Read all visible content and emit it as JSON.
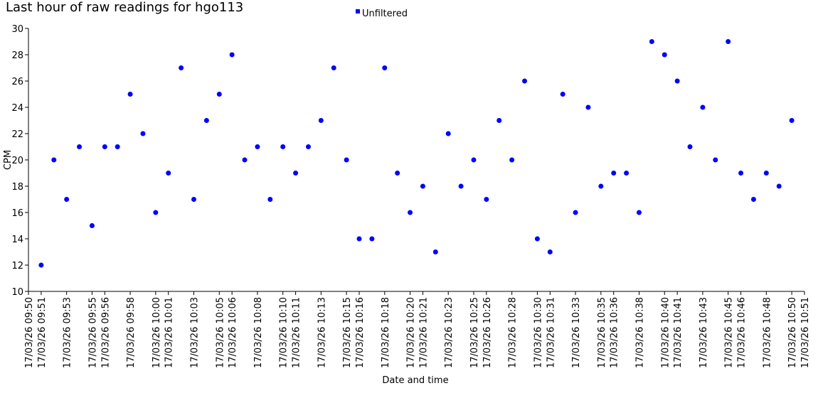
{
  "chart_data": {
    "type": "scatter",
    "title": "Last hour of raw readings for hgo113",
    "x_label": "Date and time",
    "y_label": "CPM",
    "series": [
      {
        "name": "Unfiltered",
        "color": "#0000ff",
        "x": [
          "17/03/26 09:51",
          "17/03/26 09:52",
          "17/03/26 09:53",
          "17/03/26 09:54",
          "17/03/26 09:55",
          "17/03/26 09:56",
          "17/03/26 09:57",
          "17/03/26 09:58",
          "17/03/26 09:59",
          "17/03/26 10:00",
          "17/03/26 10:01",
          "17/03/26 10:02",
          "17/03/26 10:03",
          "17/03/26 10:04",
          "17/03/26 10:05",
          "17/03/26 10:06",
          "17/03/26 10:07",
          "17/03/26 10:08",
          "17/03/26 10:09",
          "17/03/26 10:10",
          "17/03/26 10:11",
          "17/03/26 10:12",
          "17/03/26 10:13",
          "17/03/26 10:14",
          "17/03/26 10:15",
          "17/03/26 10:16",
          "17/03/26 10:17",
          "17/03/26 10:18",
          "17/03/26 10:19",
          "17/03/26 10:20",
          "17/03/26 10:21",
          "17/03/26 10:22",
          "17/03/26 10:23",
          "17/03/26 10:24",
          "17/03/26 10:25",
          "17/03/26 10:26",
          "17/03/26 10:27",
          "17/03/26 10:28",
          "17/03/26 10:29",
          "17/03/26 10:30",
          "17/03/26 10:31",
          "17/03/26 10:32",
          "17/03/26 10:33",
          "17/03/26 10:34",
          "17/03/26 10:35",
          "17/03/26 10:36",
          "17/03/26 10:37",
          "17/03/26 10:38",
          "17/03/26 10:39",
          "17/03/26 10:40",
          "17/03/26 10:41",
          "17/03/26 10:42",
          "17/03/26 10:43",
          "17/03/26 10:44",
          "17/03/26 10:45",
          "17/03/26 10:46",
          "17/03/26 10:47",
          "17/03/26 10:48",
          "17/03/26 10:49",
          "17/03/26 10:50"
        ],
        "values": [
          12,
          20,
          17,
          21,
          15,
          21,
          21,
          25,
          22,
          16,
          19,
          27,
          17,
          23,
          25,
          28,
          20,
          21,
          17,
          21,
          19,
          21,
          23,
          27,
          20,
          14,
          14,
          27,
          19,
          16,
          18,
          13,
          22,
          18,
          20,
          17,
          23,
          20,
          26,
          14,
          13,
          25,
          16,
          24,
          18,
          19,
          19,
          16,
          29,
          28,
          26,
          21,
          24,
          20,
          29,
          19,
          17,
          19,
          18,
          23
        ]
      }
    ],
    "xlim": [
      "17/03/26 09:50",
      "17/03/26 10:51"
    ],
    "xticks": [
      "17/03/26 09:50",
      "17/03/26 09:51",
      "17/03/26 09:53",
      "17/03/26 09:55",
      "17/03/26 09:56",
      "17/03/26 09:58",
      "17/03/26 10:00",
      "17/03/26 10:01",
      "17/03/26 10:03",
      "17/03/26 10:05",
      "17/03/26 10:06",
      "17/03/26 10:08",
      "17/03/26 10:10",
      "17/03/26 10:11",
      "17/03/26 10:13",
      "17/03/26 10:15",
      "17/03/26 10:16",
      "17/03/26 10:18",
      "17/03/26 10:20",
      "17/03/26 10:21",
      "17/03/26 10:23",
      "17/03/26 10:25",
      "17/03/26 10:26",
      "17/03/26 10:28",
      "17/03/26 10:30",
      "17/03/26 10:31",
      "17/03/26 10:33",
      "17/03/26 10:35",
      "17/03/26 10:36",
      "17/03/26 10:38",
      "17/03/26 10:40",
      "17/03/26 10:41",
      "17/03/26 10:43",
      "17/03/26 10:45",
      "17/03/26 10:46",
      "17/03/26 10:48",
      "17/03/26 10:50",
      "17/03/26 10:51"
    ],
    "ylim": [
      10,
      30
    ],
    "yticks": [
      10,
      12,
      14,
      16,
      18,
      20,
      22,
      24,
      26,
      28,
      30
    ],
    "grid": false,
    "legend": "top"
  }
}
